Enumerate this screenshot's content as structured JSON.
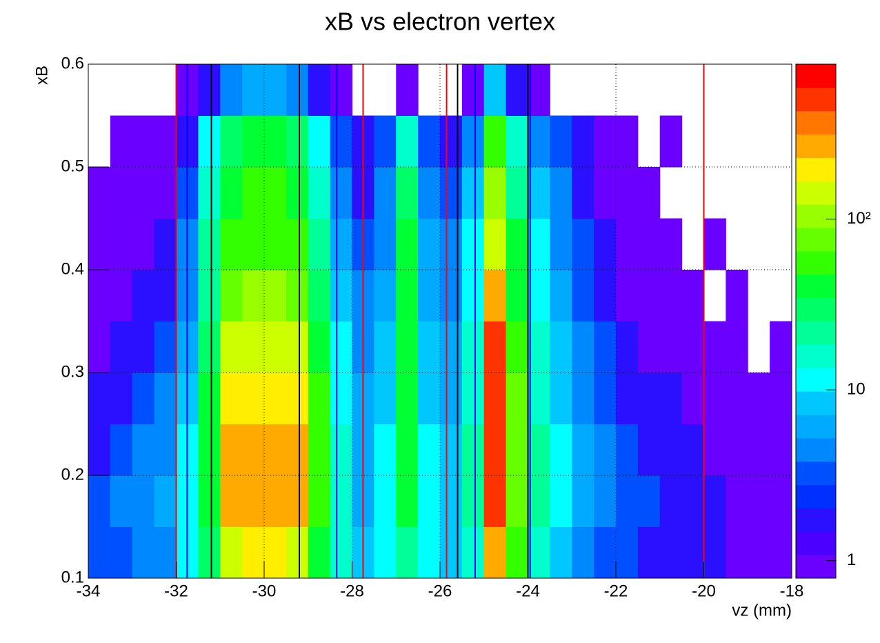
{
  "chart_data": {
    "type": "heatmap",
    "title": "xB vs electron vertex",
    "x_label": "vz (mm)",
    "y_label": "xB",
    "xlim": [
      -34,
      -18
    ],
    "ylim": [
      0.1,
      0.6
    ],
    "xticks": [
      -34,
      -32,
      -30,
      -28,
      -26,
      -24,
      -22,
      -20,
      -18
    ],
    "yticks": [
      0.1,
      0.2,
      0.3,
      0.4,
      0.5,
      0.6
    ],
    "grid": true,
    "x_edges": [
      -34,
      -33.5,
      -33,
      -32.5,
      -32,
      -31.5,
      -31,
      -30.5,
      -30,
      -29.5,
      -29,
      -28.5,
      -28,
      -27.5,
      -27,
      -26.5,
      -26,
      -25.5,
      -25,
      -24.5,
      -24,
      -23.5,
      -23,
      -22.5,
      -22,
      -21.5,
      -21,
      -20.5,
      -20,
      -19.5,
      -19,
      -18.5,
      -18
    ],
    "y_edges": [
      0.1,
      0.15,
      0.2,
      0.25,
      0.3,
      0.35,
      0.4,
      0.45,
      0.5,
      0.55,
      0.6
    ],
    "z": [
      [
        3,
        3,
        4,
        5,
        10,
        30,
        150,
        200,
        200,
        150,
        40,
        15,
        8,
        10,
        25,
        10,
        8,
        15,
        250,
        60,
        15,
        8,
        5,
        3,
        3,
        2,
        2,
        2,
        2,
        1,
        1,
        1
      ],
      [
        3,
        4,
        5,
        6,
        12,
        40,
        250,
        300,
        300,
        250,
        60,
        15,
        7,
        10,
        40,
        10,
        8,
        20,
        500,
        80,
        20,
        10,
        6,
        4,
        3,
        3,
        2,
        2,
        2,
        1,
        1,
        1
      ],
      [
        2,
        3,
        4,
        5,
        10,
        40,
        250,
        300,
        300,
        240,
        60,
        15,
        7,
        10,
        40,
        10,
        8,
        20,
        500,
        80,
        20,
        10,
        6,
        4,
        3,
        2,
        2,
        2,
        1,
        1,
        1,
        1
      ],
      [
        2,
        2,
        3,
        4,
        8,
        35,
        180,
        220,
        220,
        180,
        50,
        12,
        6,
        9,
        40,
        9,
        7,
        18,
        500,
        70,
        18,
        9,
        5,
        3,
        2,
        2,
        2,
        1,
        1,
        1,
        1,
        1
      ],
      [
        1,
        2,
        2,
        3,
        6,
        30,
        140,
        160,
        160,
        130,
        40,
        10,
        5,
        8,
        40,
        8,
        6,
        15,
        450,
        60,
        15,
        8,
        4,
        3,
        2,
        1,
        1,
        1,
        1,
        1,
        null,
        1
      ],
      [
        1,
        1,
        2,
        2,
        5,
        25,
        80,
        100,
        100,
        80,
        30,
        8,
        4,
        6,
        35,
        7,
        5,
        12,
        250,
        45,
        12,
        6,
        3,
        2,
        1,
        1,
        1,
        1,
        null,
        1,
        null,
        null
      ],
      [
        1,
        1,
        1,
        2,
        4,
        20,
        50,
        60,
        60,
        50,
        20,
        6,
        3,
        5,
        35,
        6,
        4,
        10,
        160,
        35,
        10,
        5,
        3,
        2,
        1,
        1,
        1,
        null,
        1,
        null,
        null,
        null
      ],
      [
        1,
        1,
        1,
        1,
        3,
        15,
        40,
        50,
        50,
        40,
        15,
        4,
        2,
        4,
        30,
        5,
        3,
        8,
        90,
        25,
        8,
        4,
        2,
        1,
        1,
        1,
        null,
        null,
        null,
        null,
        null,
        null
      ],
      [
        null,
        1,
        1,
        1,
        2,
        10,
        30,
        35,
        35,
        30,
        10,
        3,
        2,
        3,
        15,
        3,
        2,
        5,
        50,
        15,
        5,
        3,
        2,
        1,
        1,
        null,
        1,
        null,
        null,
        null,
        null,
        null
      ],
      [
        null,
        null,
        null,
        null,
        1,
        2,
        5,
        6,
        6,
        5,
        2,
        1,
        null,
        null,
        1,
        null,
        null,
        1,
        8,
        2,
        1,
        null,
        null,
        null,
        null,
        null,
        null,
        null,
        null,
        null,
        null,
        null
      ]
    ],
    "zlim": [
      0.79,
      808
    ],
    "zscale": "log",
    "zticks": [
      1,
      10,
      {
        "value": 100,
        "label": "10²"
      }
    ],
    "palette": [
      "#6a00ff",
      "#4b00ff",
      "#2a10ff",
      "#0030ff",
      "#0050ff",
      "#0088ff",
      "#00aaff",
      "#00c8ff",
      "#00ffff",
      "#00ffcc",
      "#00ff99",
      "#00ff66",
      "#00ff33",
      "#33ff00",
      "#66ff00",
      "#99ff00",
      "#ccff00",
      "#ffee00",
      "#ffaa00",
      "#ff7700",
      "#ff3300",
      "#ff0000"
    ],
    "vlines": [
      {
        "color": "#ff0000",
        "x": [
          -32,
          -27.75,
          -25.85,
          -20
        ]
      },
      {
        "color": "#0000ff",
        "x": [
          -31.75,
          -28.35,
          -25.2,
          -23.95
        ]
      },
      {
        "color": "#000000",
        "x": [
          -31.2,
          -29.2,
          -25.6,
          -24.0
        ]
      }
    ]
  }
}
